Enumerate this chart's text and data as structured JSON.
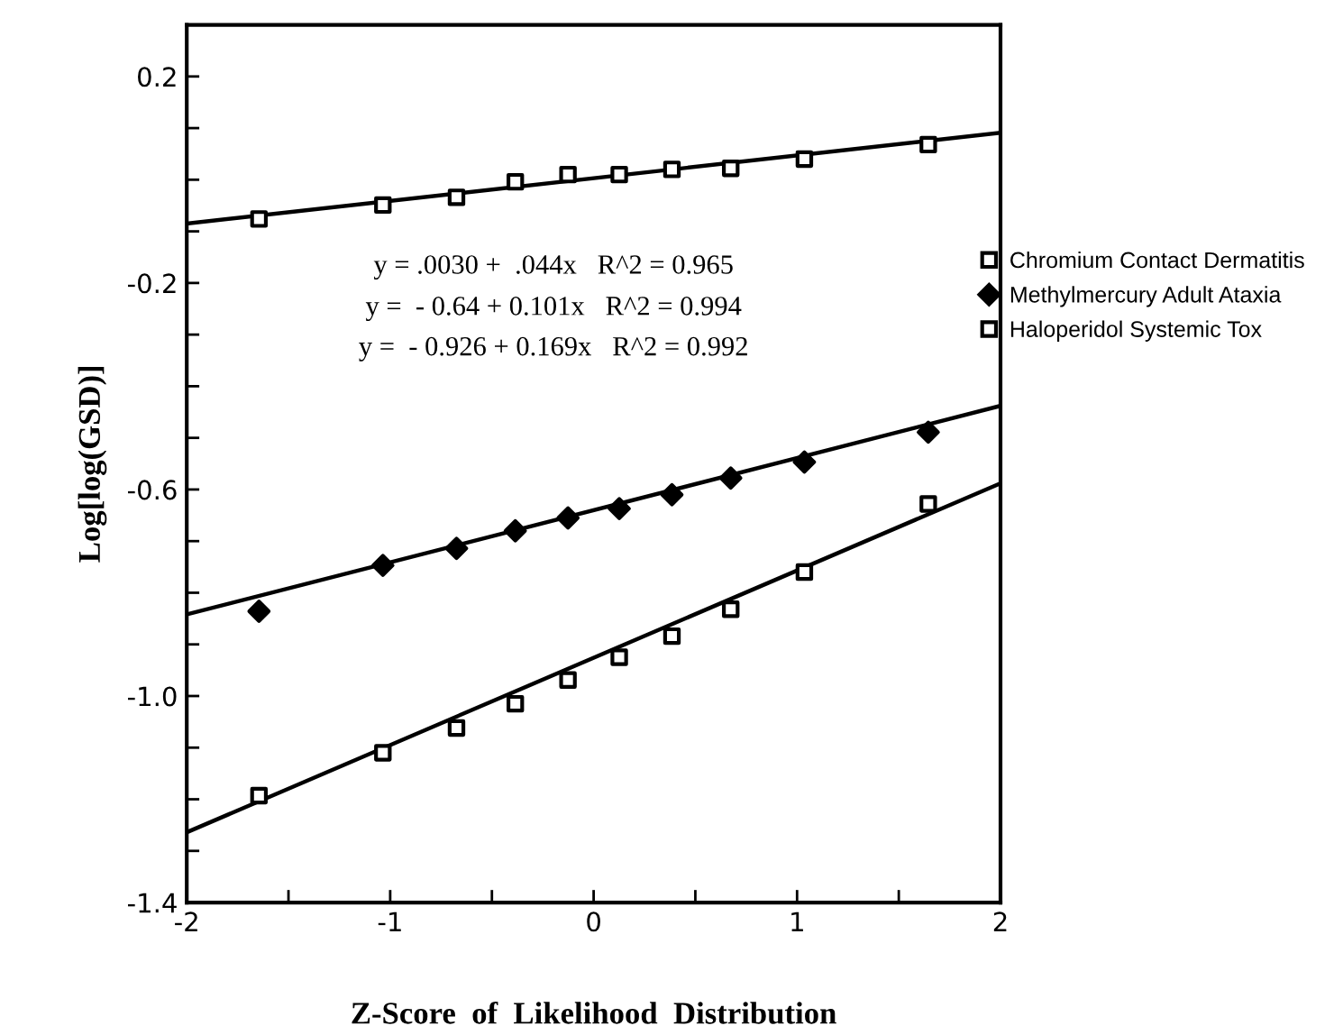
{
  "chart_data": {
    "type": "scatter",
    "xlabel": "Z-Score  of  Likelihood  Distribution",
    "ylabel": "Log[log(GSD)]",
    "xlim": [
      -2,
      2
    ],
    "ylim": [
      -1.4,
      0.3
    ],
    "xticks": [
      -2,
      {
        "value": -1.5,
        "label": null
      },
      -1,
      {
        "value": -0.5,
        "label": null
      },
      0,
      {
        "value": 0.5,
        "label": null
      },
      1,
      {
        "value": 1.5,
        "label": null
      },
      2
    ],
    "yticks": [
      -1.4,
      {
        "value": -1.3,
        "label": null
      },
      {
        "value": -1.2,
        "label": null
      },
      {
        "value": -1.1,
        "label": null
      },
      {
        "value": -1.0,
        "label": "-1.0"
      },
      {
        "value": -0.9,
        "label": null
      },
      {
        "value": -0.8,
        "label": null
      },
      {
        "value": -0.7,
        "label": null
      },
      -0.6,
      {
        "value": -0.5,
        "label": null
      },
      {
        "value": -0.4,
        "label": null
      },
      {
        "value": -0.3,
        "label": null
      },
      -0.2,
      {
        "value": -0.1,
        "label": null
      },
      {
        "value": 0.0,
        "label": null
      },
      {
        "value": 0.1,
        "label": null
      },
      0.2
    ],
    "grid": false,
    "legend": "top right",
    "annotations": [
      "y = .0030 +  .044x   R^2 = 0.965",
      "y =  - 0.64 + 0.101x   R^2 = 0.994",
      "y =  - 0.926 + 0.169x   R^2 = 0.992"
    ],
    "series": [
      {
        "name": "Chromium Contact Dermatitis",
        "marker": "square",
        "color": "#000000",
        "x": [
          -1.645,
          -1.036,
          -0.674,
          -0.385,
          -0.126,
          0.126,
          0.385,
          0.674,
          1.036,
          1.645
        ],
        "values": [
          -0.076,
          -0.049,
          -0.034,
          -0.004,
          0.01,
          0.01,
          0.02,
          0.022,
          0.04,
          0.068
        ]
      },
      {
        "name": "Methylmercury Adult Ataxia",
        "marker": "diamond",
        "color": "#000000",
        "x": [
          -1.645,
          -1.036,
          -0.674,
          -0.385,
          -0.126,
          0.126,
          0.385,
          0.674,
          1.036,
          1.645
        ],
        "values": [
          -0.836,
          -0.747,
          -0.714,
          -0.68,
          -0.655,
          -0.637,
          -0.61,
          -0.578,
          -0.547,
          -0.489
        ]
      },
      {
        "name": "Haloperidol Systemic Tox",
        "marker": "square",
        "color": "#000000",
        "x": [
          -1.645,
          -1.036,
          -0.674,
          -0.385,
          -0.126,
          0.126,
          0.385,
          0.674,
          1.036,
          1.645
        ],
        "values": [
          -1.193,
          -1.11,
          -1.062,
          -1.015,
          -0.969,
          -0.925,
          -0.884,
          -0.832,
          -0.76,
          -0.628
        ]
      },
      {
        "type": "line",
        "color": "#000000",
        "line_style": "solid",
        "marker": "none",
        "x": [
          -2,
          2
        ],
        "values": [
          -0.085,
          0.091
        ]
      },
      {
        "type": "line",
        "color": "#000000",
        "line_style": "solid",
        "marker": "none",
        "x": [
          -2,
          2
        ],
        "values": [
          -0.842,
          -0.438
        ]
      },
      {
        "type": "line",
        "color": "#000000",
        "line_style": "solid",
        "marker": "none",
        "x": [
          -2,
          2
        ],
        "values": [
          -1.264,
          -0.588
        ]
      }
    ]
  }
}
